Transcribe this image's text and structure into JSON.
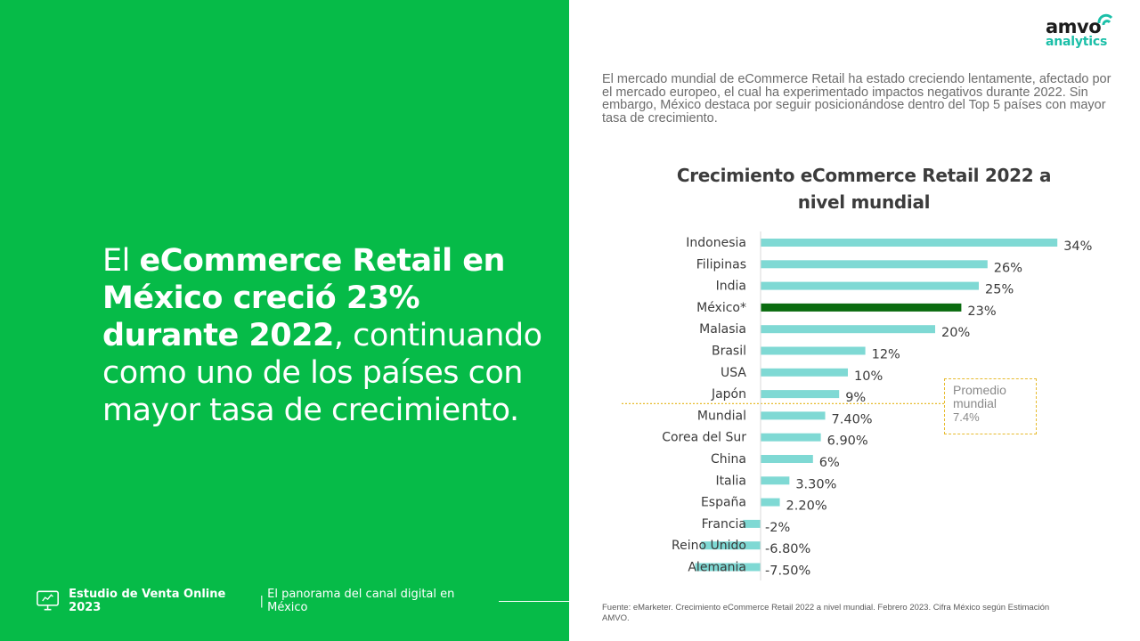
{
  "headline": {
    "lead": "El ",
    "bold": "eCommerce Retail en México creció 23% durante 2022",
    "rest": ", continuando como uno de los países con mayor tasa de crecimiento."
  },
  "footer": {
    "title": "Estudio de Venta Online 2023",
    "separator": " | ",
    "subtitle": "El panorama del canal digital en México"
  },
  "logo": {
    "line1": "amvo",
    "line2": "analytics"
  },
  "intro": "El mercado mundial de eCommerce Retail ha estado creciendo lentamente, afectado por el mercado europeo, el cual ha experimentado impactos negativos durante 2022. Sin embargo, México destaca por seguir posicionándose dentro del Top 5 países con mayor tasa de crecimiento.",
  "average_box": {
    "label": "Promedio mundial",
    "value": "7.4%"
  },
  "source": "Fuente: eMarketer. Crecimiento eCommerce Retail 2022 a nivel mundial. Febrero 2023. Cifra México según Estimación AMVO.",
  "colors": {
    "green_panel": "#06bb48",
    "bar_default": "#7fd9d4",
    "bar_highlight": "#0a6b0f",
    "avg_line": "#e7bb2e"
  },
  "chart_data": {
    "type": "bar",
    "orientation": "horizontal",
    "title": "Crecimiento eCommerce Retail 2022 a nivel mundial",
    "categories": [
      "Indonesia",
      "Filipinas",
      "India",
      "México*",
      "Malasia",
      "Brasil",
      "USA",
      "Japón",
      "Mundial",
      "Corea del Sur",
      "China",
      "Italia",
      "España",
      "Francia",
      "Reino Unido",
      "Alemania"
    ],
    "values": [
      34,
      26,
      25,
      23,
      20,
      12,
      10,
      9,
      7.4,
      6.9,
      6,
      3.3,
      2.2,
      -2,
      -6.8,
      -7.5
    ],
    "labels": [
      "34%",
      "26%",
      "25%",
      "23%",
      "20%",
      "12%",
      "10%",
      "9%",
      "7.40%",
      "6.90%",
      "6%",
      "3.30%",
      "2.20%",
      "-2%",
      "-6.80%",
      "-7.50%"
    ],
    "highlight": "México*",
    "reference_line": {
      "value": 7.4,
      "label": "Promedio mundial"
    },
    "unit": "%"
  }
}
